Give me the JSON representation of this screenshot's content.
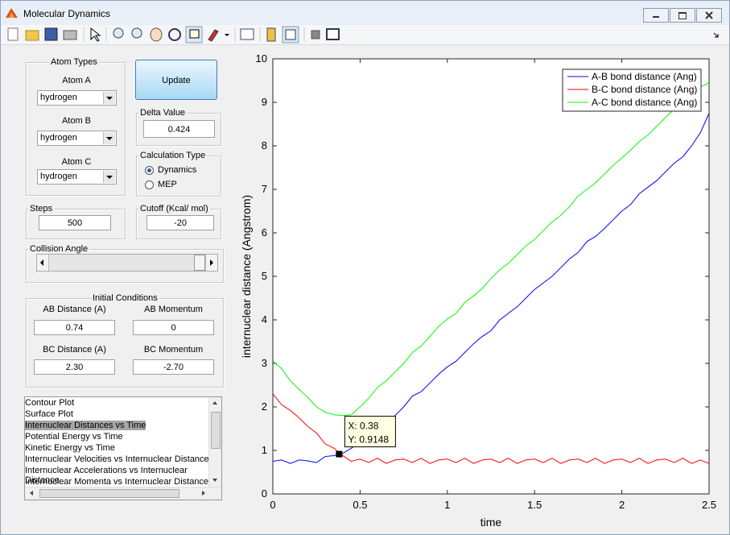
{
  "window": {
    "title": "Molecular Dynamics"
  },
  "panel": {
    "atom_types": {
      "label": "Atom Types",
      "atoms": [
        {
          "label": "Atom A",
          "value": "hydrogen"
        },
        {
          "label": "Atom B",
          "value": "hydrogen"
        },
        {
          "label": "Atom C",
          "value": "hydrogen"
        }
      ]
    },
    "update_button": "Update",
    "delta_value": {
      "label": "Delta Value",
      "value": "0.424"
    },
    "calculation_type": {
      "label": "Calculation Type",
      "options": [
        "Dynamics",
        "MEP"
      ],
      "selected": 0
    },
    "steps": {
      "label": "Steps",
      "value": "500"
    },
    "cutoff": {
      "label": "Cutoff (Kcal/ mol)",
      "value": "-20"
    },
    "collision_angle": {
      "label": "Collision Angle"
    },
    "initial_conditions": {
      "label": "Initial Conditions",
      "fields": [
        {
          "label": "AB Distance (A)",
          "value": "0.74"
        },
        {
          "label": "AB Momentum",
          "value": "0"
        },
        {
          "label": "BC Distance (A)",
          "value": "2.30"
        },
        {
          "label": "BC Momentum",
          "value": "-2.70"
        }
      ]
    },
    "listbox": {
      "items": [
        "Contour Plot",
        "Surface Plot",
        "Internuclear Distances vs Time",
        "Potential Energy vs Time",
        "Kinetic Energy vs Time",
        "Internuclear Velocities vs Internuclear Distance",
        "Internuclear Accelerations vs Internuclear Distance",
        "Internuclear Momenta vs Internuclear Distance"
      ],
      "selected": 2
    }
  },
  "chart_data": {
    "type": "line",
    "x_label": "time",
    "y_label": "internuclear distance (Angstrom)",
    "x": [
      0,
      0.05,
      0.1,
      0.15,
      0.2,
      0.25,
      0.3,
      0.35,
      0.4,
      0.45,
      0.5,
      0.55,
      0.6,
      0.65,
      0.7,
      0.75,
      0.8,
      0.85,
      0.9,
      0.95,
      1,
      1.05,
      1.1,
      1.15,
      1.2,
      1.25,
      1.3,
      1.35,
      1.4,
      1.45,
      1.5,
      1.55,
      1.6,
      1.65,
      1.7,
      1.75,
      1.8,
      1.85,
      1.9,
      1.95,
      2,
      2.05,
      2.1,
      2.15,
      2.2,
      2.25,
      2.3,
      2.35,
      2.4,
      2.45,
      2.5
    ],
    "series": [
      {
        "name": "A-B bond distance (Ang)",
        "color": "#0000ff",
        "values": [
          0.75,
          0.78,
          0.7,
          0.78,
          0.76,
          0.72,
          0.86,
          0.88,
          0.93,
          1.05,
          1.2,
          1.32,
          1.5,
          1.6,
          1.8,
          2.0,
          2.25,
          2.35,
          2.55,
          2.75,
          2.92,
          3.05,
          3.25,
          3.45,
          3.62,
          3.75,
          4.0,
          4.15,
          4.3,
          4.5,
          4.7,
          4.85,
          5.0,
          5.2,
          5.4,
          5.55,
          5.8,
          5.92,
          6.1,
          6.3,
          6.5,
          6.65,
          6.9,
          7.05,
          7.2,
          7.4,
          7.6,
          7.75,
          8.0,
          8.3,
          8.75
        ]
      },
      {
        "name": "B-C bond distance (Ang)",
        "color": "#ff0000",
        "values": [
          2.3,
          2.05,
          1.92,
          1.75,
          1.55,
          1.4,
          1.15,
          1.05,
          0.88,
          0.75,
          0.8,
          0.72,
          0.82,
          0.7,
          0.78,
          0.8,
          0.72,
          0.82,
          0.7,
          0.78,
          0.8,
          0.72,
          0.82,
          0.7,
          0.78,
          0.8,
          0.72,
          0.82,
          0.7,
          0.78,
          0.8,
          0.72,
          0.82,
          0.7,
          0.78,
          0.8,
          0.72,
          0.82,
          0.7,
          0.78,
          0.8,
          0.72,
          0.82,
          0.7,
          0.78,
          0.8,
          0.72,
          0.82,
          0.7,
          0.78,
          0.7
        ]
      },
      {
        "name": "A-C bond distance (Ang)",
        "color": "#00ff00",
        "values": [
          3.05,
          2.88,
          2.6,
          2.4,
          2.22,
          2.0,
          1.88,
          1.82,
          1.8,
          1.82,
          2.0,
          2.2,
          2.45,
          2.6,
          2.8,
          3.0,
          3.25,
          3.4,
          3.62,
          3.85,
          4.02,
          4.15,
          4.4,
          4.55,
          4.72,
          4.95,
          5.15,
          5.3,
          5.5,
          5.7,
          5.85,
          6.05,
          6.25,
          6.4,
          6.6,
          6.85,
          7.0,
          7.15,
          7.35,
          7.55,
          7.72,
          7.9,
          8.1,
          8.25,
          8.45,
          8.65,
          8.85,
          9.0,
          9.2,
          9.35,
          9.45
        ]
      }
    ],
    "xlim": [
      0,
      2.5
    ],
    "xticks": [
      0,
      0.5,
      1,
      1.5,
      2,
      2.5
    ],
    "ylim": [
      0,
      10
    ],
    "yticks": [
      0,
      1,
      2,
      3,
      4,
      5,
      6,
      7,
      8,
      9,
      10
    ],
    "grid": false,
    "legend": "upper right",
    "datatip": {
      "x": 0.38,
      "y": 0.9148,
      "labels": [
        "X: 0.38",
        "Y: 0.9148"
      ]
    }
  }
}
